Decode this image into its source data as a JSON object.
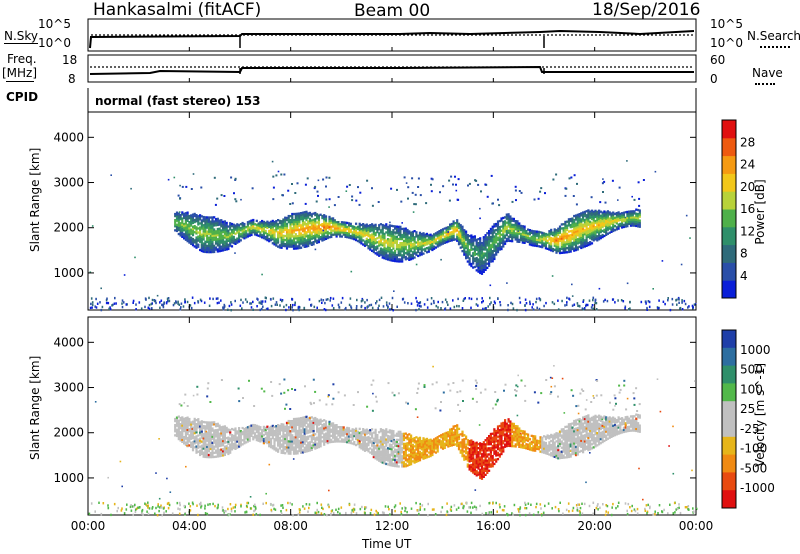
{
  "header": {
    "site": "Hankasalmi (fitACF)",
    "beam": "Beam 00",
    "date": "18/Sep/2016"
  },
  "top_panels": {
    "nsky_label": "N.Sky",
    "nsearch_label": "N.Search",
    "freq_label": "Freq.",
    "freq_unit": "[MHz]",
    "nave_label": "Nave",
    "cpid_label": "CPID",
    "cpid_text": "normal (fast stereo) 153",
    "left_ticks_noise": [
      "10^5",
      "10^0"
    ],
    "right_ticks_noise": [
      "10^5",
      "10^0"
    ],
    "left_ticks_freq": [
      "18",
      "8"
    ],
    "right_ticks_nave": [
      "60",
      "0"
    ]
  },
  "colors": {
    "power": [
      "#0a1fd8",
      "#2a4fa8",
      "#2f6b7a",
      "#2f8f6a",
      "#4fb04a",
      "#b8d23a",
      "#f2c71a",
      "#f59a12",
      "#ee5a10",
      "#e01010"
    ],
    "velocity": [
      "#1f3fa8",
      "#2d6ea0",
      "#2f8f6a",
      "#52b84a",
      "#c0c0c0",
      "#c0c0c0",
      "#e6b51a",
      "#f08a12",
      "#e84a10",
      "#e01010"
    ]
  },
  "chart_data": [
    {
      "type": "heatmap",
      "name": "Power",
      "xlabel": "Time UT",
      "ylabel": "Slant Range [km]",
      "colorbar_label": "Power [dB]",
      "colorbar_ticks": [
        "4",
        "8",
        "12",
        "16",
        "20",
        "24",
        "28"
      ],
      "x_ticks": [
        "00:00",
        "04:00",
        "08:00",
        "12:00",
        "16:00",
        "20:00",
        "00:00"
      ],
      "y_ticks": [
        "1000",
        "2000",
        "3000",
        "4000"
      ],
      "xlim_hours": [
        0,
        24
      ],
      "ylim_km": [
        180,
        4560
      ],
      "ground_scatter": false,
      "echo_band": {
        "hours": [
          3.5,
          4.5,
          5.5,
          6.5,
          7.5,
          8.5,
          9.5,
          10.5,
          11.5,
          12.5,
          13.5,
          14.5,
          15.0,
          15.5,
          16.5,
          17.5,
          18.5,
          19.5,
          20.5,
          21.5
        ],
        "center_km": [
          2100,
          1850,
          1800,
          2000,
          1850,
          1950,
          2000,
          1900,
          1700,
          1600,
          1650,
          1950,
          1500,
          1350,
          2000,
          1750,
          1700,
          1950,
          2100,
          2200
        ],
        "peak_db": [
          16,
          18,
          16,
          20,
          22,
          24,
          26,
          22,
          20,
          18,
          20,
          24,
          14,
          12,
          18,
          16,
          26,
          22,
          22,
          18
        ]
      }
    },
    {
      "type": "heatmap",
      "name": "Velocity",
      "xlabel": "Time UT",
      "ylabel": "Slant Range [km]",
      "colorbar_label": "Velocity [m s^-1]",
      "colorbar_ticks": [
        "1000",
        "500",
        "100",
        "25",
        "-25",
        "-100",
        "-500",
        "-1000"
      ],
      "x_ticks": [
        "00:00",
        "04:00",
        "08:00",
        "12:00",
        "16:00",
        "20:00",
        "00:00"
      ],
      "y_ticks": [
        "1000",
        "2000",
        "3000",
        "4000"
      ],
      "xlim_hours": [
        0,
        24
      ],
      "ylim_km": [
        180,
        4560
      ],
      "ground_scatter": true,
      "echo_band_velocity_ms": {
        "hours": [
          3.5,
          6.0,
          9.0,
          12.0,
          14.5,
          15.3,
          15.8,
          18.0,
          21.0
        ],
        "velocity": [
          0,
          0,
          0,
          0,
          -300,
          -800,
          -1000,
          0,
          0
        ]
      }
    }
  ]
}
